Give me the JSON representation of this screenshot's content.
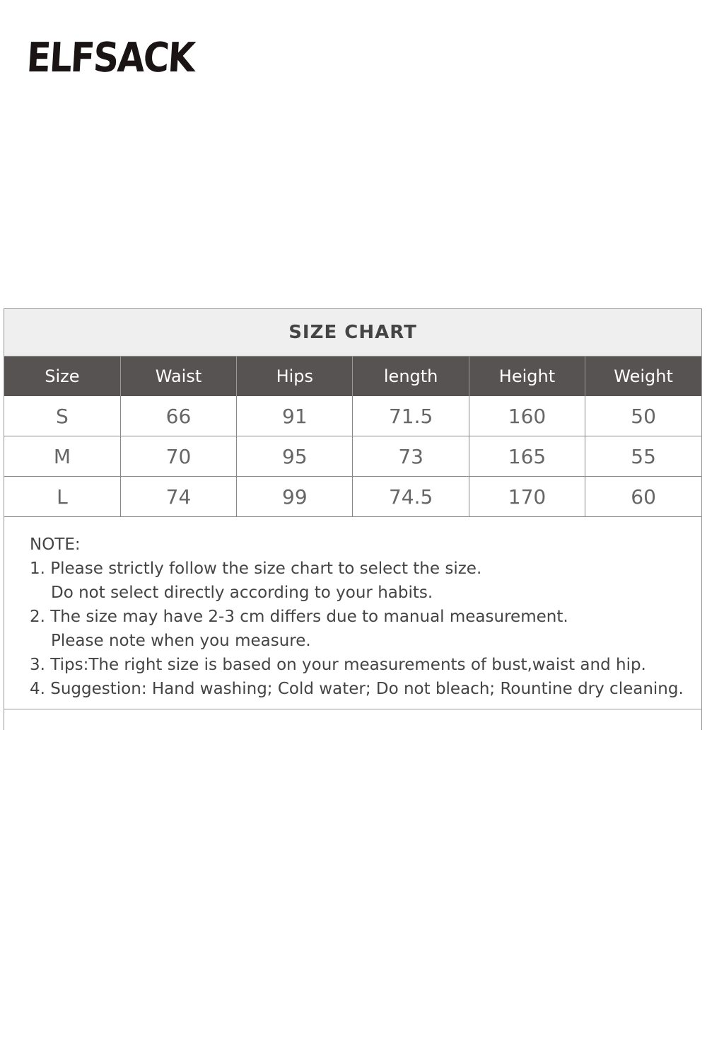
{
  "brand": {
    "logo": "ELFSACK"
  },
  "chart": {
    "title": "SIZE CHART",
    "headers": [
      "Size",
      "Waist",
      "Hips",
      "length",
      "Height",
      "Weight"
    ],
    "rows": [
      [
        "S",
        "66",
        "91",
        "71.5",
        "160",
        "50"
      ],
      [
        "M",
        "70",
        "95",
        "73",
        "165",
        "55"
      ],
      [
        "L",
        "74",
        "99",
        "74.5",
        "170",
        "60"
      ]
    ]
  },
  "notes": {
    "heading": "NOTE:",
    "lines": [
      "1. Please strictly follow the size chart to select the size.",
      "Do not select directly according to your habits.",
      "2. The size may have 2-3 cm differs due to manual measurement.",
      "Please note when you measure.",
      "3. Tips:The right size is based on your measurements of bust,waist and hip.",
      "4. Suggestion: Hand washing; Cold water; Do not bleach; Rountine dry cleaning."
    ]
  }
}
